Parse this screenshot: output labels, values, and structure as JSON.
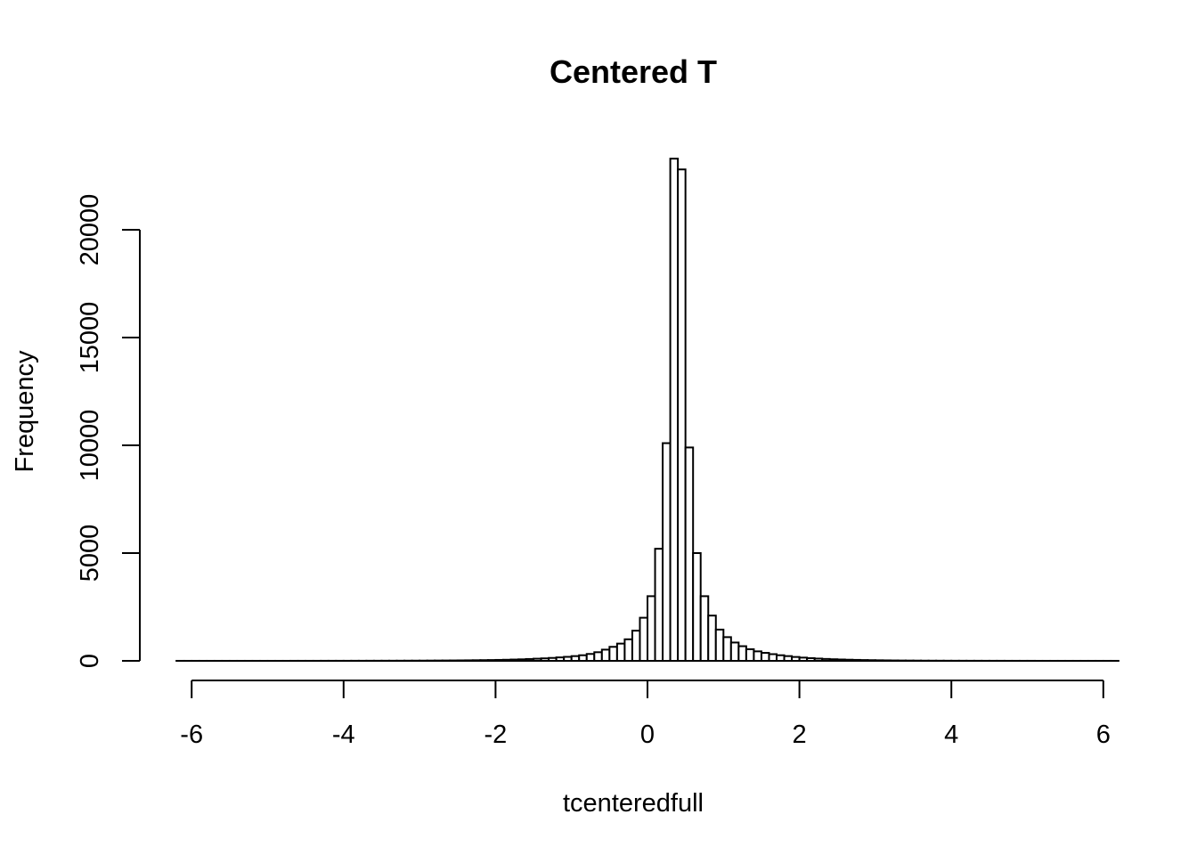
{
  "chart_data": {
    "type": "bar",
    "title": "Centered T",
    "xlabel": "tcenteredfull",
    "ylabel": "Frequency",
    "xlim": [
      -6.2,
      5.8
    ],
    "ylim": [
      0,
      23300
    ],
    "x_ticks": [
      -6,
      -4,
      -2,
      0,
      2,
      4,
      6
    ],
    "y_ticks": [
      0,
      5000,
      10000,
      15000,
      20000
    ],
    "bin_width": 0.1,
    "bin_start": -6.2,
    "series": [
      {
        "values": [
          1,
          1,
          1,
          1,
          1,
          1,
          1,
          1,
          1,
          1,
          1,
          1,
          1,
          1,
          1,
          2,
          2,
          2,
          2,
          3,
          3,
          3,
          3,
          4,
          4,
          5,
          5,
          6,
          6,
          7,
          8,
          9,
          10,
          12,
          14,
          16,
          18,
          21,
          24,
          28,
          32,
          37,
          43,
          50,
          60,
          70,
          85,
          100,
          115,
          135,
          160,
          185,
          220,
          260,
          320,
          400,
          520,
          650,
          800,
          1000,
          1400,
          2000,
          3000,
          5200,
          10100,
          23300,
          22800,
          9900,
          5000,
          3000,
          2100,
          1450,
          1100,
          850,
          680,
          540,
          440,
          370,
          310,
          260,
          220,
          180,
          150,
          125,
          105,
          88,
          74,
          62,
          52,
          44,
          37,
          31,
          26,
          22,
          18,
          15,
          13,
          11,
          9,
          8,
          7,
          6,
          5,
          5,
          4,
          4,
          3,
          3,
          3,
          2,
          2,
          2,
          2,
          1,
          1,
          1,
          1,
          1,
          1,
          1,
          1,
          1,
          1,
          1
        ]
      }
    ],
    "colors": {
      "bar_fill": "#ffffff",
      "bar_stroke": "#000000"
    }
  }
}
